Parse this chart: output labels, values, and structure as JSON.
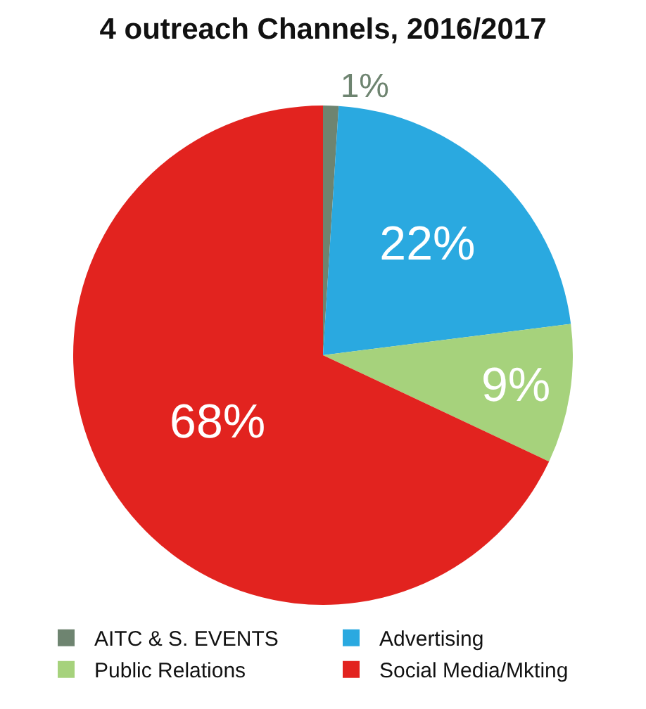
{
  "chart_data": {
    "type": "pie",
    "title": "4 outreach Channels, 2016/2017",
    "categories": [
      "AITC & S. EVENTS",
      "Advertising",
      "Public Relations",
      "Social Media/Mkting"
    ],
    "values": [
      1,
      22,
      9,
      68
    ],
    "value_labels": [
      "1%",
      "22%",
      "9%",
      "68%"
    ],
    "colors": [
      "#6e8470",
      "#2aa9e0",
      "#a6d27c",
      "#e2231f"
    ],
    "legend": "bottom"
  }
}
